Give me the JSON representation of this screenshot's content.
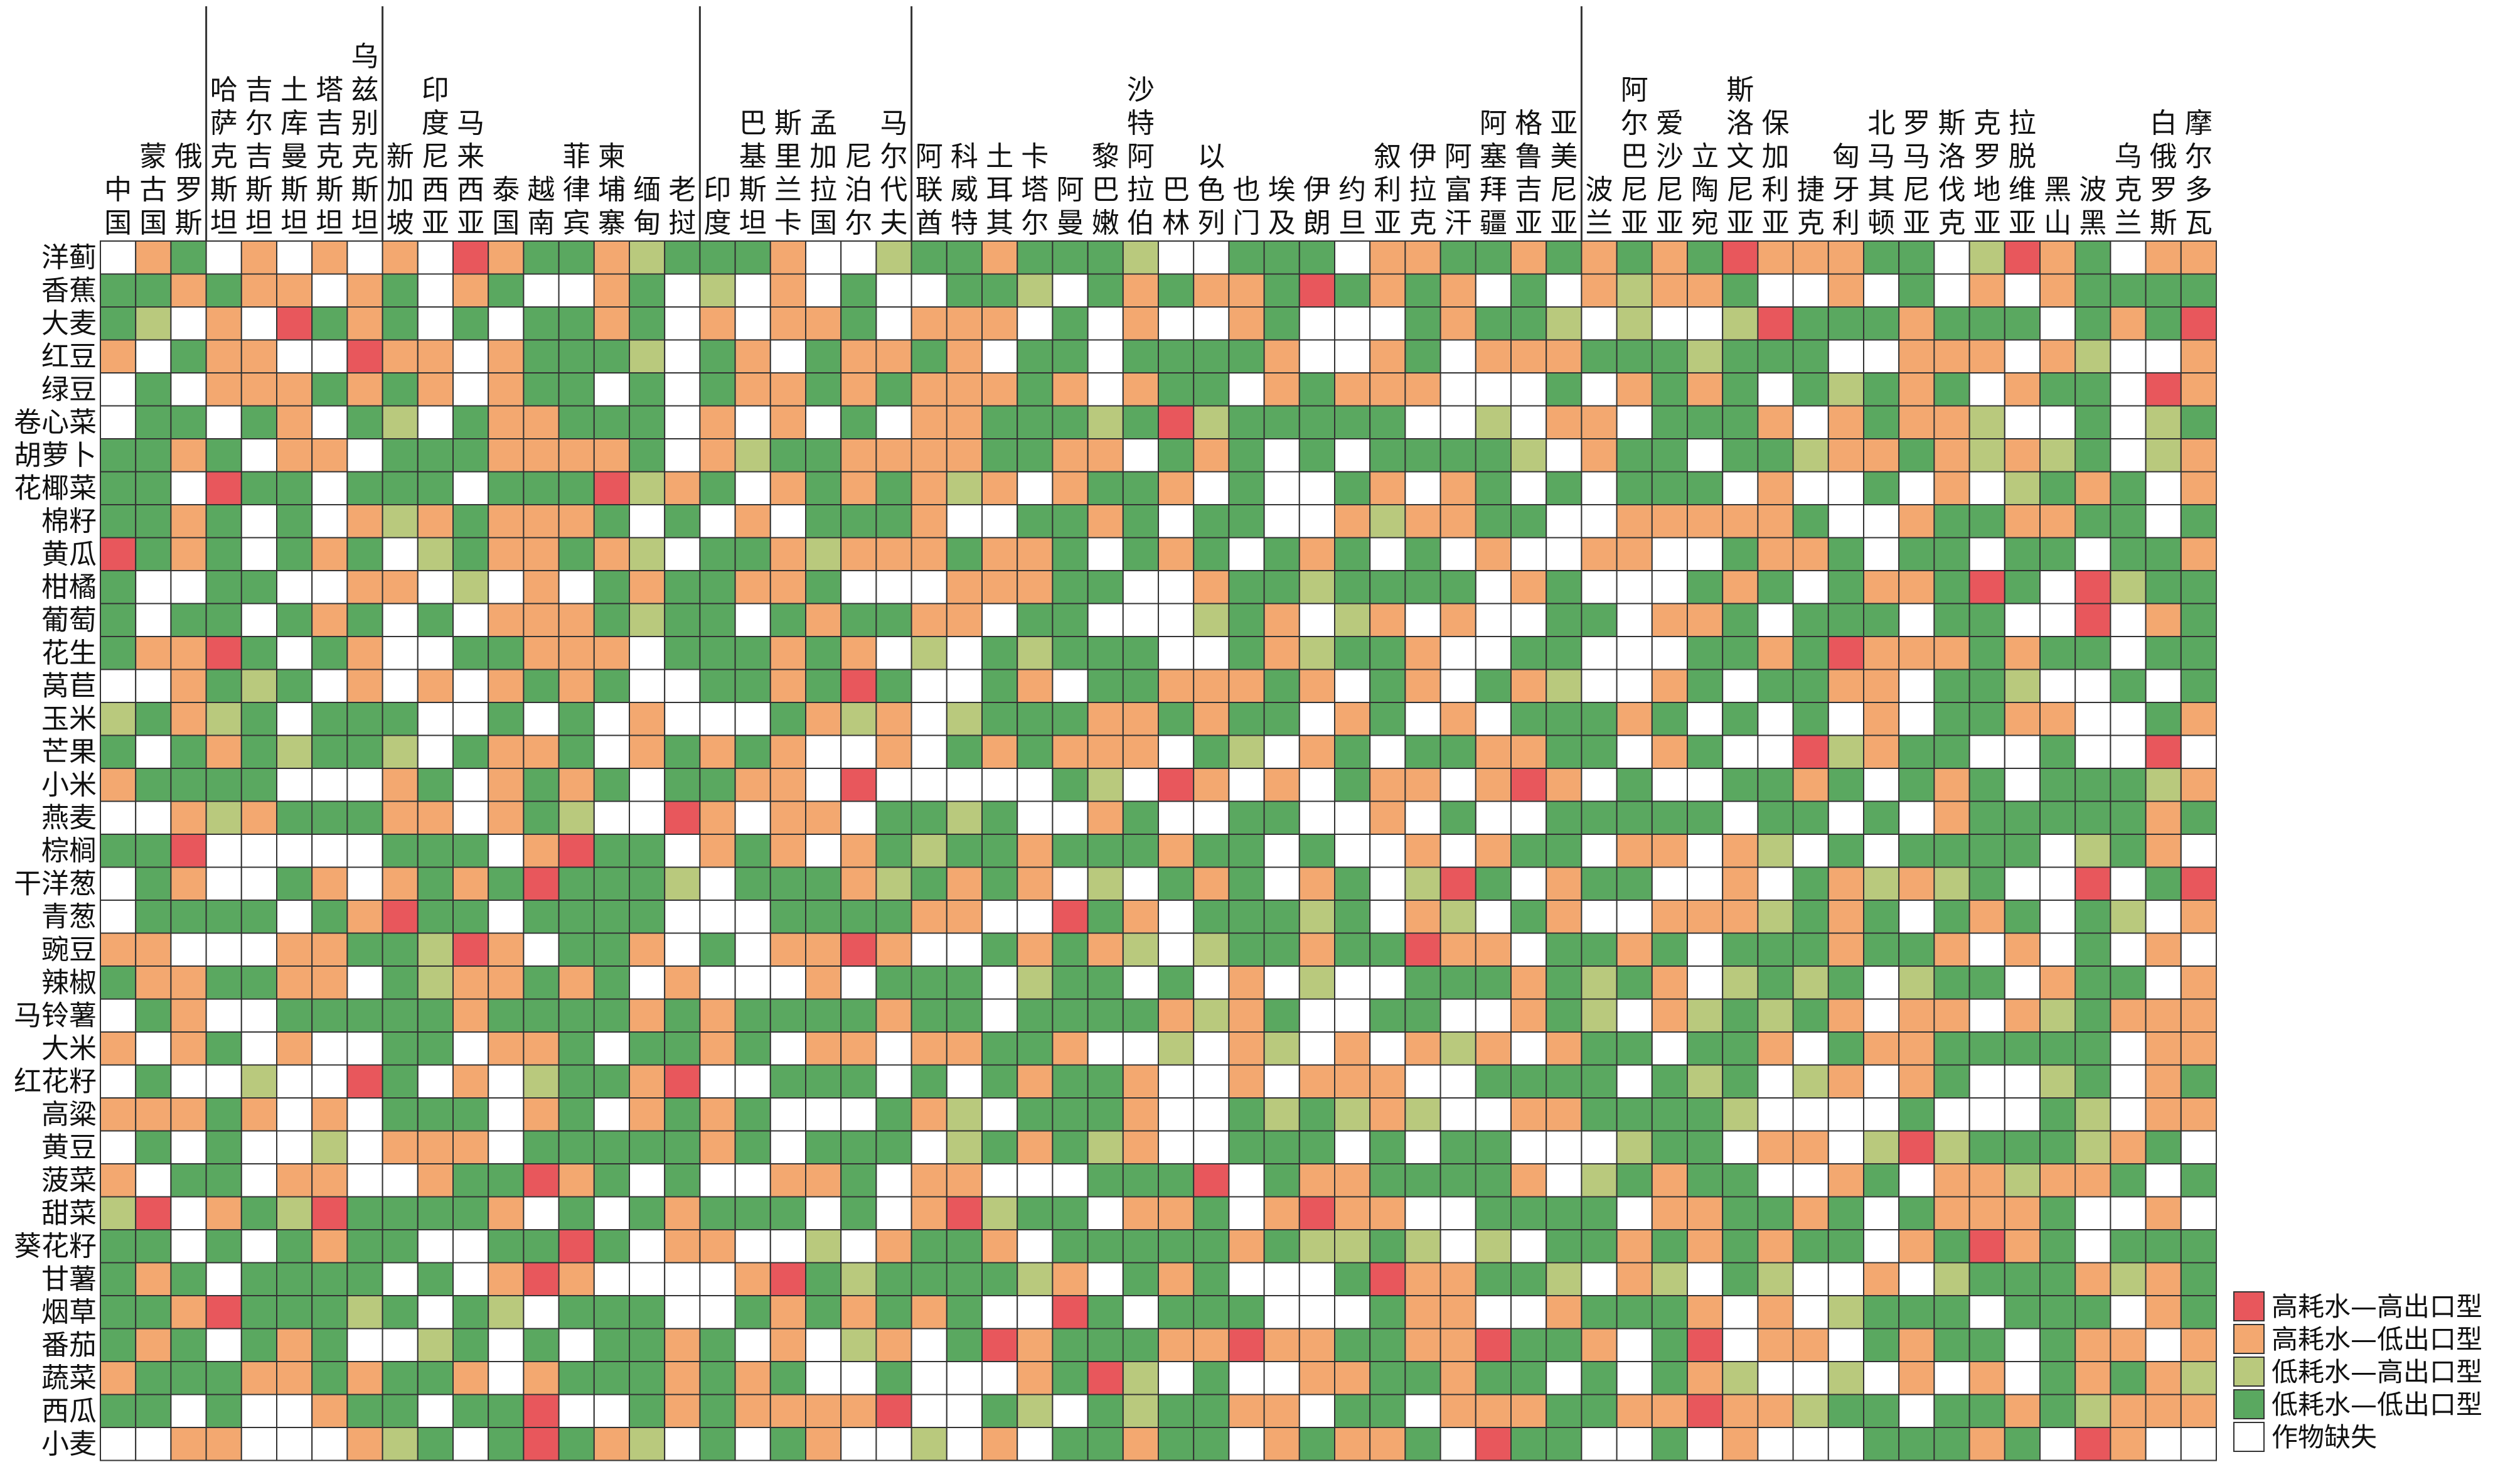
{
  "chart_data": {
    "type": "heatmap",
    "countries": [
      [
        "中",
        "国"
      ],
      [
        "蒙",
        "古",
        "国"
      ],
      [
        "俄",
        "罗",
        "斯"
      ],
      [
        "哈",
        "萨",
        "克",
        "斯",
        "坦"
      ],
      [
        "吉",
        "尔",
        "吉",
        "斯",
        "坦"
      ],
      [
        "土",
        "库",
        "曼",
        "斯",
        "坦"
      ],
      [
        "塔",
        "吉",
        "克",
        "斯",
        "坦"
      ],
      [
        "乌",
        "兹",
        "别",
        "克",
        "斯",
        "坦"
      ],
      [
        "新",
        "加",
        "坡"
      ],
      [
        "印",
        "度",
        "尼",
        "西",
        "亚"
      ],
      [
        "马",
        "来",
        "西",
        "亚"
      ],
      [
        "泰",
        "国"
      ],
      [
        "越",
        "南"
      ],
      [
        "菲",
        "律",
        "宾"
      ],
      [
        "柬",
        "埔",
        "寨"
      ],
      [
        "缅",
        "甸"
      ],
      [
        "老",
        "挝"
      ],
      [
        "印",
        "度"
      ],
      [
        "巴",
        "基",
        "斯",
        "坦"
      ],
      [
        "斯",
        "里",
        "兰",
        "卡"
      ],
      [
        "孟",
        "加",
        "拉",
        "国"
      ],
      [
        "尼",
        "泊",
        "尔"
      ],
      [
        "马",
        "尔",
        "代",
        "夫"
      ],
      [
        "阿",
        "联",
        "酋"
      ],
      [
        "科",
        "威",
        "特"
      ],
      [
        "土",
        "耳",
        "其"
      ],
      [
        "卡",
        "塔",
        "尔"
      ],
      [
        "阿",
        "曼"
      ],
      [
        "黎",
        "巴",
        "嫩"
      ],
      [
        "沙",
        "特",
        "阿",
        "拉",
        "伯"
      ],
      [
        "巴",
        "林"
      ],
      [
        "以",
        "色",
        "列"
      ],
      [
        "也",
        "门"
      ],
      [
        "埃",
        "及"
      ],
      [
        "伊",
        "朗"
      ],
      [
        "约",
        "旦"
      ],
      [
        "叙",
        "利",
        "亚"
      ],
      [
        "伊",
        "拉",
        "克"
      ],
      [
        "阿",
        "富",
        "汗"
      ],
      [
        "阿",
        "塞",
        "拜",
        "疆"
      ],
      [
        "格",
        "鲁",
        "吉",
        "亚"
      ],
      [
        "亚",
        "美",
        "尼",
        "亚"
      ],
      [
        "波",
        "兰"
      ],
      [
        "阿",
        "尔",
        "巴",
        "尼",
        "亚"
      ],
      [
        "爱",
        "沙",
        "尼",
        "亚"
      ],
      [
        "立",
        "陶",
        "宛"
      ],
      [
        "斯",
        "洛",
        "文",
        "尼",
        "亚"
      ],
      [
        "保",
        "加",
        "利",
        "亚"
      ],
      [
        "捷",
        "克"
      ],
      [
        "匈",
        "牙",
        "利"
      ],
      [
        "北",
        "马",
        "其",
        "顿"
      ],
      [
        "罗",
        "马",
        "尼",
        "亚"
      ],
      [
        "斯",
        "洛",
        "伐",
        "克"
      ],
      [
        "克",
        "罗",
        "地",
        "亚"
      ],
      [
        "拉",
        "脱",
        "维",
        "亚"
      ],
      [
        "黑",
        "山"
      ],
      [
        "波",
        "黑"
      ],
      [
        "乌",
        "克",
        "兰"
      ],
      [
        "白",
        "俄",
        "罗",
        "斯"
      ],
      [
        "摩",
        "尔",
        "多",
        "瓦"
      ]
    ],
    "crops": [
      "洋蓟",
      "香蕉",
      "大麦",
      "红豆",
      "绿豆",
      "卷心菜",
      "胡萝卜",
      "花椰菜",
      "棉籽",
      "黄瓜",
      "柑橘",
      "葡萄",
      "花生",
      "莴苣",
      "玉米",
      "芒果",
      "小米",
      "燕麦",
      "棕榈",
      "干洋葱",
      "青葱",
      "豌豆",
      "辣椒",
      "马铃薯",
      "大米",
      "红花籽",
      "高粱",
      "黄豆",
      "菠菜",
      "甜菜",
      "葵花籽",
      "甘薯",
      "烟草",
      "番茄",
      "蔬菜",
      "西瓜",
      "小麦"
    ],
    "legend": [
      {
        "label": "高耗水—高出口型",
        "color": "#e8575c"
      },
      {
        "label": "高耗水—低出口型",
        "color": "#f3a870"
      },
      {
        "label": "低耗水—高出口型",
        "color": "#b9c97d"
      },
      {
        "label": "低耗水—低出口型",
        "color": "#5aa860"
      },
      {
        "label": "作物缺失",
        "color": "#ffffff"
      }
    ],
    "region_breaks_after": [
      2,
      7,
      16,
      22,
      41
    ]
  }
}
